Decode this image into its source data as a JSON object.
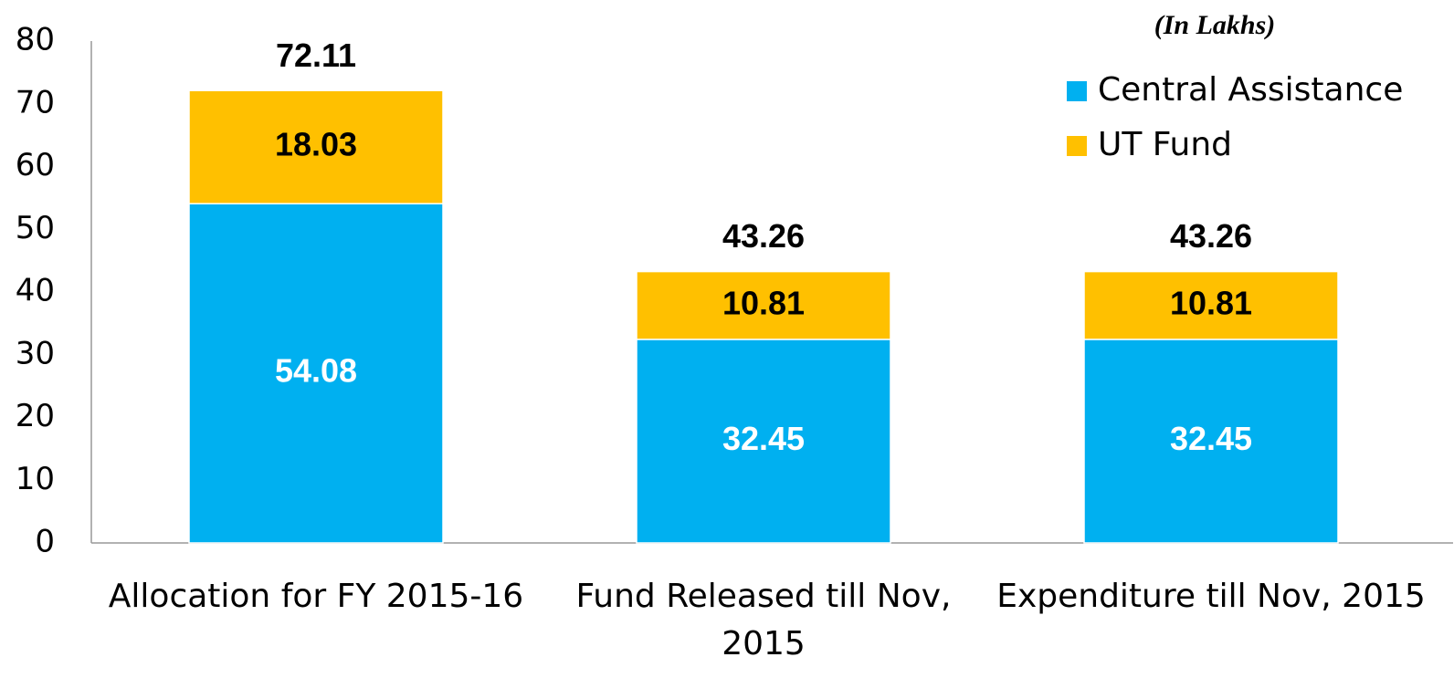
{
  "chart_data": {
    "type": "stacked_bar",
    "note": "(In Lakhs)",
    "categories": [
      "Allocation for FY 2015-16",
      "Fund Released till Nov, 2015",
      "Expenditure till Nov, 2015"
    ],
    "series": [
      {
        "name": "Central Assistance",
        "color": "#00b0f0",
        "values": [
          54.08,
          32.45,
          32.45
        ]
      },
      {
        "name": "UT Fund",
        "color": "#ffc000",
        "values": [
          18.03,
          10.81,
          10.81
        ]
      }
    ],
    "totals": [
      72.11,
      43.26,
      43.26
    ],
    "ylim": [
      0,
      80
    ],
    "yticks": [
      0,
      10,
      20,
      30,
      40,
      50,
      60,
      70,
      80
    ],
    "legend": "top-right"
  }
}
